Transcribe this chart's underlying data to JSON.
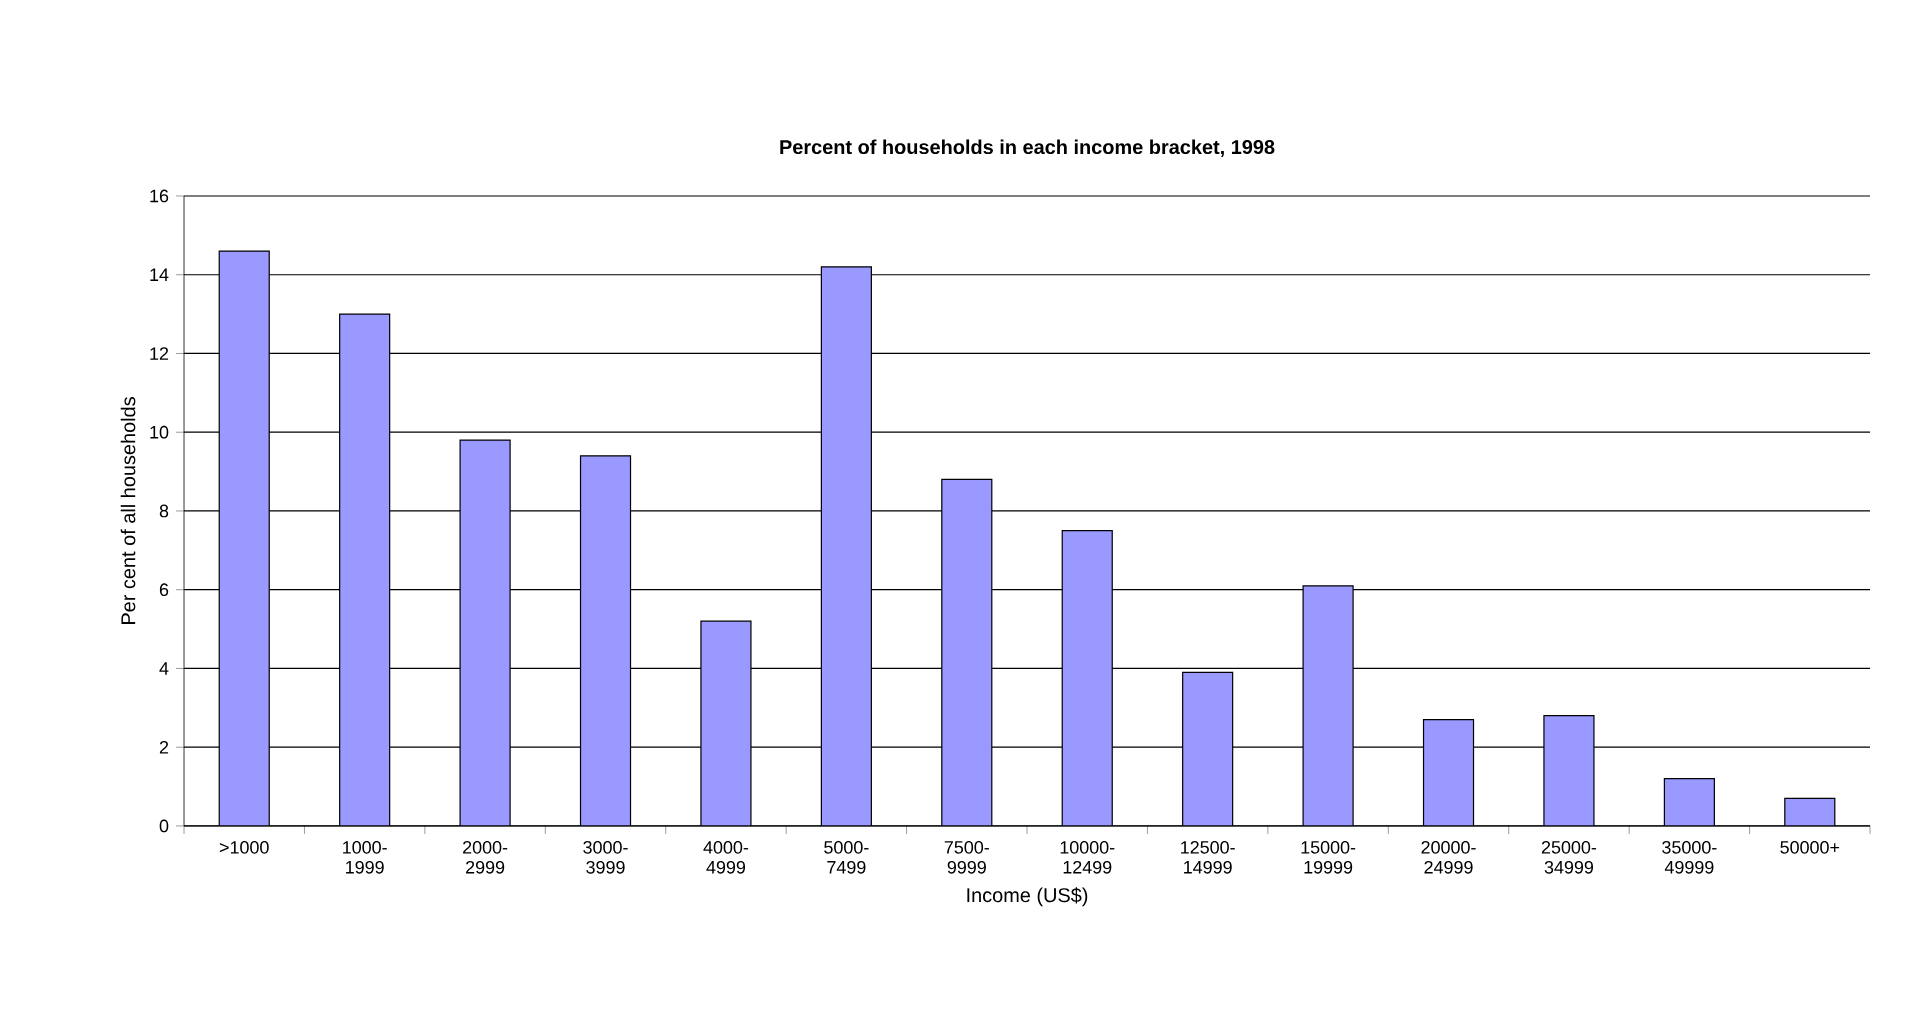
{
  "chart_data": {
    "type": "bar",
    "title": "Percent of households in each income bracket, 1998",
    "xlabel": "Income (US$)",
    "ylabel": "Per cent of all households",
    "categories": [
      ">1000",
      "1000-1999",
      "2000-2999",
      "3000-3999",
      "4000-4999",
      "5000-7499",
      "7500-9999",
      "10000-12499",
      "12500-14999",
      "15000-19999",
      "20000-24999",
      "25000-34999",
      "35000-49999",
      "50000+"
    ],
    "values": [
      14.6,
      13.0,
      9.8,
      9.4,
      5.2,
      14.2,
      8.8,
      7.5,
      3.9,
      6.1,
      2.7,
      2.8,
      1.2,
      0.7
    ],
    "color": "#9999ff",
    "ylim": [
      0,
      16
    ],
    "yticks": [
      0,
      2,
      4,
      6,
      8,
      10,
      12,
      14,
      16
    ],
    "grid": "y"
  }
}
